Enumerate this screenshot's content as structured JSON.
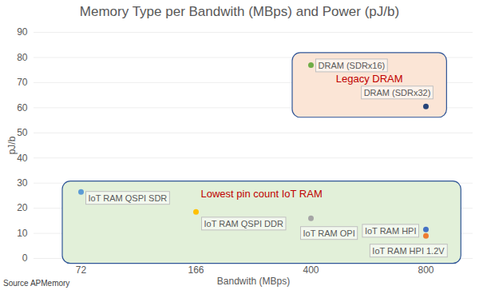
{
  "chart_data": {
    "type": "scatter",
    "title": "Memory Type per Bandwith (MBps) and Power (pJ/b)",
    "x_label": "Bandwith (MBps)",
    "y_label": "pJ/b",
    "caption": "Source APMemory",
    "categories": [
      "72",
      "166",
      "400",
      "800"
    ],
    "ylim": [
      0,
      90
    ],
    "yticks": [
      0,
      10,
      20,
      30,
      40,
      50,
      60,
      70,
      80,
      90
    ],
    "grid": true,
    "series": [
      {
        "name": "IoT RAM QSPI SDR",
        "x": "72",
        "y": 26.5,
        "color": "#5b9bd5"
      },
      {
        "name": "IoT RAM QSPI DDR",
        "x": "166",
        "y": 18.5,
        "color": "#ffc000"
      },
      {
        "name": "IoT RAM OPI",
        "x": "400",
        "y": 16,
        "color": "#a5a5a5"
      },
      {
        "name": "IoT RAM HPI",
        "x": "800",
        "y": 11.5,
        "color": "#4472c4"
      },
      {
        "name": "IoT RAM HPI 1.2V",
        "x": "800",
        "y": 9,
        "color": "#ed7d31"
      },
      {
        "name": "DRAM (SDRx16)",
        "x": "400",
        "y": 77,
        "color": "#70ad47"
      },
      {
        "name": "DRAM (SDRx32)",
        "x": "800",
        "y": 60.5,
        "color": "#264478"
      }
    ],
    "annotations": [
      {
        "text": "Legacy DRAM",
        "color": "#c00000",
        "members": [
          "DRAM (SDRx16)",
          "DRAM (SDRx32)"
        ]
      },
      {
        "text": "Lowest pin count IoT RAM",
        "color": "#c00000",
        "members": [
          "IoT RAM QSPI SDR",
          "IoT RAM QSPI DDR",
          "IoT RAM OPI",
          "IoT RAM HPI",
          "IoT RAM HPI 1.2V"
        ]
      }
    ]
  }
}
